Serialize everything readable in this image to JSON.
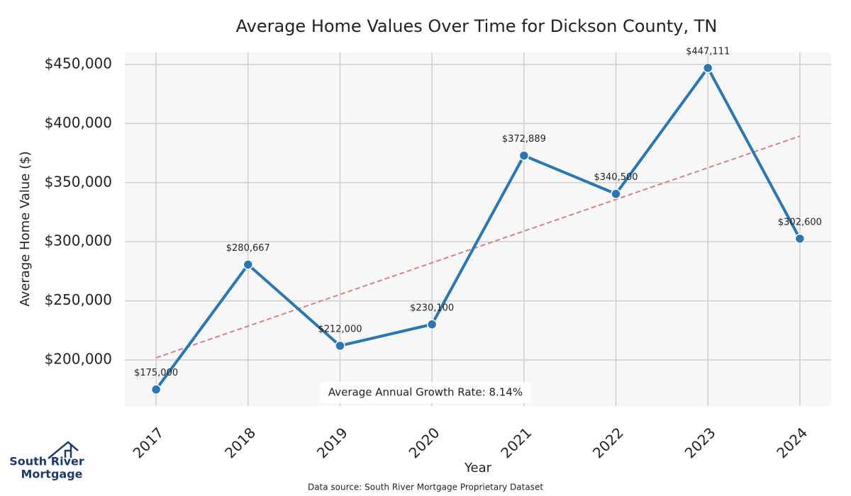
{
  "chart_data": {
    "type": "line",
    "title": "Average Home Values Over Time for Dickson County, TN",
    "x_label": "Year",
    "y_label": "Average Home Value ($)",
    "x": [
      2017,
      2018,
      2019,
      2020,
      2021,
      2022,
      2023,
      2024
    ],
    "series": [
      {
        "name": "Average Home Value",
        "color": "#2a77b4",
        "values": [
          175000,
          280667,
          212000,
          230100,
          372889,
          340500,
          447111,
          302600
        ],
        "value_labels": [
          "$175,000",
          "$280,667",
          "$212,000",
          "$230,100",
          "$372,889",
          "$340,500",
          "$447,111",
          "$302,600"
        ]
      }
    ],
    "trend": {
      "color": "#d98080",
      "x": [
        2017,
        2024
      ],
      "values": [
        201800,
        389400
      ]
    },
    "xlim": [
      2016.66,
      2024.34
    ],
    "ylim": [
      161000,
      460200
    ],
    "xticks": [
      2017,
      2018,
      2019,
      2020,
      2021,
      2022,
      2023,
      2024
    ],
    "yticks": [
      {
        "value": 200000,
        "label": "$200,000"
      },
      {
        "value": 250000,
        "label": "$250,000"
      },
      {
        "value": 300000,
        "label": "$300,000"
      },
      {
        "value": 350000,
        "label": "$350,000"
      },
      {
        "value": 400000,
        "label": "$400,000"
      },
      {
        "value": 450000,
        "label": "$450,000"
      }
    ],
    "grid": true,
    "annotation": "Average Annual Growth Rate: 8.14%",
    "source": "Data source: South River Mortgage Proprietary Dataset"
  },
  "logo": {
    "line1": "South River",
    "line2": "Mortgage"
  }
}
